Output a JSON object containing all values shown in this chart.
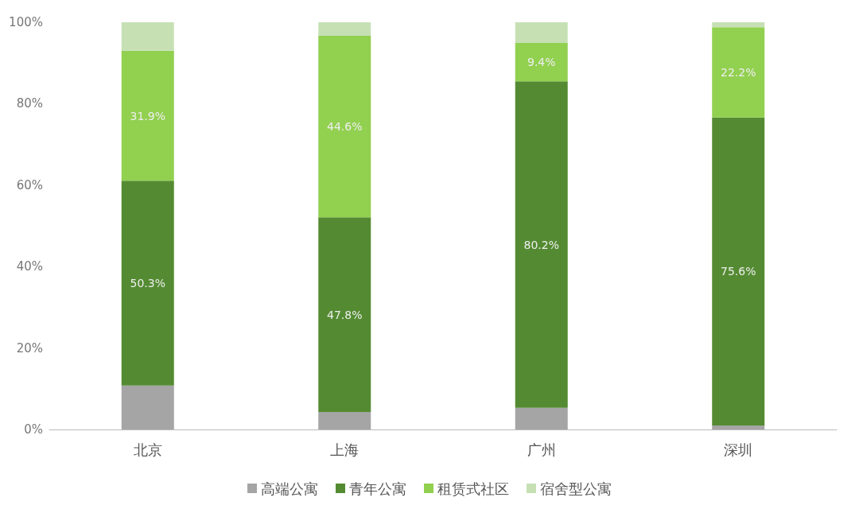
{
  "chart_data": {
    "type": "bar",
    "stacked": true,
    "categories": [
      "北京",
      "上海",
      "广州",
      "深圳"
    ],
    "series": [
      {
        "name": "高端公寓",
        "color": "#a5a5a5",
        "values": [
          10.8,
          4.3,
          5.3,
          1.0
        ]
      },
      {
        "name": "青年公寓",
        "color": "#548b32",
        "values": [
          50.3,
          47.8,
          80.2,
          75.6
        ],
        "value_labels": [
          "50.3%",
          "47.8%",
          "80.2%",
          "75.6%"
        ]
      },
      {
        "name": "租赁式社区",
        "color": "#92d050",
        "values": [
          31.9,
          44.6,
          9.4,
          22.2
        ],
        "value_labels": [
          "31.9%",
          "44.6%",
          "9.4%",
          "22.2%"
        ]
      },
      {
        "name": "宿舍型公寓",
        "color": "#c6e0b4",
        "values": [
          7.0,
          3.3,
          5.1,
          1.2
        ]
      }
    ],
    "ylim": [
      0,
      100
    ],
    "yticks": [
      {
        "value": 0,
        "label": "0%"
      },
      {
        "value": 20,
        "label": "20%"
      },
      {
        "value": 40,
        "label": "40%"
      },
      {
        "value": 60,
        "label": "60%"
      },
      {
        "value": 80,
        "label": "80%"
      },
      {
        "value": 100,
        "label": "100%"
      }
    ],
    "grid": false,
    "legend": "bottom"
  }
}
